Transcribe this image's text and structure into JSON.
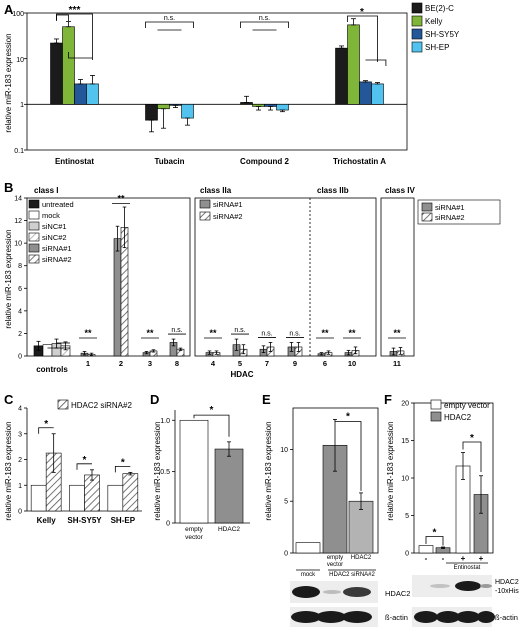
{
  "colors": {
    "black": "#1b1b1b",
    "green": "#7fb538",
    "navy": "#24579a",
    "cyan": "#52c3ee",
    "white": "#ffffff",
    "lightgray": "#cfcfcf",
    "gray": "#8f8f8f",
    "midgray": "#b3b3b3",
    "blot_dark": "#1a1a1a",
    "blot_bg": "#ededed"
  },
  "panels": {
    "A": {
      "letter": "A"
    },
    "B": {
      "letter": "B"
    },
    "C": {
      "letter": "C"
    },
    "D": {
      "letter": "D"
    },
    "E": {
      "letter": "E"
    },
    "F": {
      "letter": "F"
    }
  },
  "chart_data": [
    {
      "id": "A",
      "type": "bar",
      "yscale": "log",
      "ylim": [
        0.1,
        100
      ],
      "ylabel": "relative miR-183 expression",
      "ytick_labels": [
        "100",
        "10",
        "1",
        "0.1"
      ],
      "categories": [
        "Entinostat",
        "Tubacin",
        "Compound 2",
        "Trichostatin A"
      ],
      "series": [
        {
          "name": "BE(2)-C",
          "color": "#1b1b1b",
          "values": [
            22,
            0.45,
            1.1,
            17
          ],
          "err": [
            5,
            0.2,
            0.4,
            2
          ]
        },
        {
          "name": "Kelly",
          "color": "#7fb538",
          "values": [
            50,
            0.8,
            0.9,
            55
          ],
          "err": [
            15,
            0.5,
            0.15,
            20
          ]
        },
        {
          "name": "SH-SY5Y",
          "color": "#24579a",
          "values": [
            2.8,
            0.95,
            0.9,
            3.1
          ],
          "err": [
            0.7,
            0.1,
            0.15,
            0.2
          ]
        },
        {
          "name": "SH-EP",
          "color": "#52c3ee",
          "values": [
            2.8,
            0.5,
            0.75,
            2.8
          ],
          "err": [
            1.5,
            0.15,
            0.06,
            0.2
          ]
        }
      ],
      "significance": [
        "***",
        "n.s.",
        "n.s.",
        "*"
      ]
    },
    {
      "id": "B",
      "type": "bar",
      "ylim": [
        0,
        14
      ],
      "ylabel": "relative miR-183 expression",
      "yticks": [
        "0",
        "2",
        "4",
        "6",
        "8",
        "10",
        "12",
        "14"
      ],
      "xlabel": "HDAC",
      "class_labels": [
        "class I",
        "class IIa",
        "class IIb",
        "class IV"
      ],
      "legend_left": [
        "untreated",
        "mock",
        "siNC#1",
        "siNC#2",
        "siRNA#1",
        "siRNA#2"
      ],
      "legend_right": [
        "siRNA#1",
        "siRNA#2"
      ],
      "controls_label": "controls",
      "controls": [
        {
          "name": "untreated",
          "value": 0.9,
          "err": 0.4
        },
        {
          "name": "mock",
          "value": 1.0,
          "err": 0.05
        },
        {
          "name": "siNC#1",
          "value": 1.1,
          "err": 0.4
        },
        {
          "name": "siNC#2",
          "value": 0.9,
          "err": 0.35
        }
      ],
      "hdac": [
        {
          "label": "1",
          "values": [
            0.25,
            0.15
          ],
          "err": [
            0.15,
            0.1
          ],
          "sig": "**"
        },
        {
          "label": "2",
          "values": [
            10.4,
            11.4
          ],
          "err": [
            1.1,
            1.8
          ],
          "sig": "**"
        },
        {
          "label": "3",
          "values": [
            0.3,
            0.45
          ],
          "err": [
            0.1,
            0.1
          ],
          "sig": "**"
        },
        {
          "label": "8",
          "values": [
            1.2,
            0.6
          ],
          "err": [
            0.3,
            0.1
          ],
          "sig": "n.s."
        },
        {
          "label": "4",
          "values": [
            0.3,
            0.3
          ],
          "err": [
            0.15,
            0.15
          ],
          "sig": "**"
        },
        {
          "label": "5",
          "values": [
            1.0,
            0.6
          ],
          "err": [
            0.5,
            0.4
          ],
          "sig": "n.s."
        },
        {
          "label": "7",
          "values": [
            0.6,
            0.8
          ],
          "err": [
            0.3,
            0.4
          ],
          "sig": "n.s."
        },
        {
          "label": "9",
          "values": [
            0.8,
            0.8
          ],
          "err": [
            0.4,
            0.4
          ],
          "sig": "n.s."
        },
        {
          "label": "6",
          "values": [
            0.2,
            0.3
          ],
          "err": [
            0.1,
            0.15
          ],
          "sig": "**"
        },
        {
          "label": "10",
          "values": [
            0.3,
            0.5
          ],
          "err": [
            0.2,
            0.3
          ],
          "sig": "**"
        },
        {
          "label": "11",
          "values": [
            0.4,
            0.45
          ],
          "err": [
            0.3,
            0.3
          ],
          "sig": "**"
        }
      ]
    },
    {
      "id": "C",
      "type": "bar",
      "ylim": [
        0,
        4
      ],
      "ylabel": "relative miR-183 expression",
      "yticks": [
        "0",
        "1",
        "2",
        "3",
        "4"
      ],
      "legend": [
        "HDAC2 siRNA#2"
      ],
      "categories": [
        "Kelly",
        "SH-SY5Y",
        "SH-EP"
      ],
      "values_control": [
        1,
        1,
        1
      ],
      "values_sirna": [
        2.25,
        1.4,
        1.45
      ],
      "err": [
        0.75,
        0.2,
        0.05
      ],
      "significance": [
        "*",
        "*",
        "*"
      ]
    },
    {
      "id": "D",
      "type": "bar",
      "ylim": [
        0,
        1.1
      ],
      "ylabel": "relative miR-183 expression",
      "yticks": [
        "0",
        "0.5",
        "1.0"
      ],
      "categories": [
        "empty vector",
        "HDAC2"
      ],
      "values": [
        1.0,
        0.72
      ],
      "err": [
        0,
        0.07
      ],
      "significance": "*"
    },
    {
      "id": "E",
      "type": "bar",
      "ylim": [
        0,
        14
      ],
      "ylabel": "relative miR-183 expression",
      "yticks": [
        "0",
        "5",
        "10"
      ],
      "categories": [
        "",
        "empty vector",
        "HDAC2"
      ],
      "values": [
        1.0,
        10.4,
        5.0
      ],
      "err": [
        0,
        2.5,
        0.8
      ],
      "significance": "*",
      "group_labels": [
        "mock",
        "HDAC2 siRNA#2"
      ],
      "blot_labels": [
        "HDAC2",
        "ß-actin"
      ]
    },
    {
      "id": "F",
      "type": "bar",
      "ylim": [
        0,
        20
      ],
      "ylabel": "relative miR-183 expression",
      "yticks": [
        "0",
        "5",
        "10",
        "15",
        "20"
      ],
      "legend": [
        "empty vector",
        "HDAC2"
      ],
      "categories": [
        "-",
        "-",
        "+",
        "+"
      ],
      "values": [
        1.0,
        0.7,
        11.6,
        7.8
      ],
      "err": [
        0,
        0.1,
        1.8,
        2.5
      ],
      "significance": [
        "*",
        "*"
      ],
      "treatment_label": "Entinostat",
      "blot_labels": [
        "HDAC2\n-10xHis",
        "ß-actin"
      ]
    }
  ]
}
